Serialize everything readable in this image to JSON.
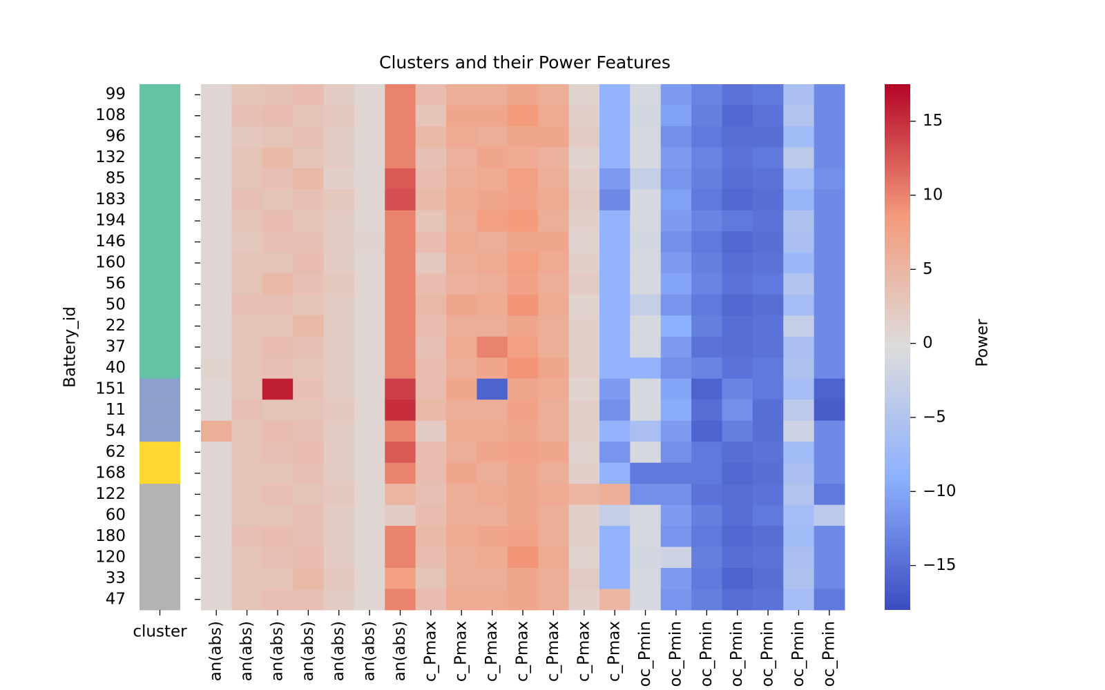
{
  "chart_data": {
    "type": "heatmap",
    "title": "Clusters and their Power Features",
    "ylabel": "Battery_id",
    "categories": [
      "99",
      "108",
      "96",
      "132",
      "85",
      "183",
      "194",
      "146",
      "160",
      "56",
      "50",
      "22",
      "37",
      "40",
      "151",
      "11",
      "54",
      "62",
      "168",
      "122",
      "60",
      "180",
      "120",
      "33",
      "47"
    ],
    "row_colors_label": "cluster",
    "row_colors": [
      "#66c2a5",
      "#66c2a5",
      "#66c2a5",
      "#66c2a5",
      "#66c2a5",
      "#66c2a5",
      "#66c2a5",
      "#66c2a5",
      "#66c2a5",
      "#66c2a5",
      "#66c2a5",
      "#66c2a5",
      "#66c2a5",
      "#66c2a5",
      "#8da0cb",
      "#8da0cb",
      "#8da0cb",
      "#ffd92f",
      "#ffd92f",
      "#b3b3b3",
      "#b3b3b3",
      "#b3b3b3",
      "#b3b3b3",
      "#b3b3b3",
      "#b3b3b3"
    ],
    "columns": [
      "an(abs)",
      "an(abs)",
      "an(abs)",
      "an(abs)",
      "an(abs)",
      "an(abs)",
      "an(abs)",
      "c_Pmax",
      "c_Pmax",
      "c_Pmax",
      "c_Pmax",
      "c_Pmax",
      "c_Pmax",
      "c_Pmax",
      "oc_Pmin",
      "oc_Pmin",
      "oc_Pmin",
      "oc_Pmin",
      "oc_Pmin",
      "oc_Pmin",
      "oc_Pmin"
    ],
    "values": [
      [
        0.5,
        3,
        3.2,
        4,
        2,
        0.5,
        10,
        4,
        6,
        6,
        7,
        6,
        1,
        -8.5,
        -1,
        -11,
        -13,
        -14.5,
        -14,
        -6,
        -12.5
      ],
      [
        0.5,
        3.5,
        4,
        3,
        2.5,
        0.5,
        10,
        3,
        7,
        7,
        8.5,
        6.5,
        1.5,
        -8.5,
        -1.5,
        -10.5,
        -13.5,
        -15.5,
        -14.5,
        -5,
        -12.5
      ],
      [
        0.5,
        2.5,
        3,
        3.5,
        2,
        0.5,
        10,
        4.5,
        6.5,
        6,
        7,
        7,
        2,
        -8.5,
        -1,
        -12,
        -14,
        -15,
        -15,
        -7,
        -12.5
      ],
      [
        0.5,
        3,
        4.5,
        3,
        2,
        0.5,
        10,
        3.5,
        5.5,
        7,
        6.5,
        5.5,
        1,
        -8.5,
        -1,
        -11,
        -13,
        -14.5,
        -14,
        -4,
        -12.5
      ],
      [
        0.5,
        3,
        3.5,
        4.5,
        1.5,
        0.5,
        12.5,
        4,
        6,
        6.5,
        8,
        6,
        1.5,
        -11,
        -3,
        -11.5,
        -13.5,
        -15,
        -14.5,
        -6.5,
        -12
      ],
      [
        0.5,
        3.5,
        3,
        3.5,
        2.5,
        0.5,
        13,
        4.5,
        6.5,
        7,
        7.5,
        6.5,
        2,
        -12.5,
        -1,
        -10.5,
        -14,
        -15.5,
        -15,
        -8,
        -12.5
      ],
      [
        0.5,
        3,
        4,
        3,
        2,
        0.5,
        10,
        3,
        6,
        8,
        8.5,
        6,
        1.5,
        -8.5,
        -1,
        -11,
        -13,
        -14,
        -14.5,
        -5.5,
        -12.5
      ],
      [
        0.5,
        2.5,
        3.5,
        3.5,
        2,
        1,
        10,
        4,
        6.5,
        6,
        7,
        7,
        1,
        -8.5,
        -1.5,
        -12,
        -14,
        -15.5,
        -15,
        -6,
        -12.5
      ],
      [
        0.5,
        3,
        3,
        4,
        2,
        0.5,
        10,
        2.5,
        6,
        6.5,
        8,
        6.5,
        1.5,
        -8.5,
        -1,
        -11,
        -13.5,
        -15,
        -14.5,
        -7.5,
        -12.5
      ],
      [
        0.5,
        3,
        4.5,
        3.5,
        2.5,
        0.5,
        10,
        4,
        5.5,
        6,
        7.5,
        6,
        2,
        -8.5,
        -1,
        -10,
        -13,
        -14.5,
        -14,
        -5,
        -12.5
      ],
      [
        0.5,
        3.5,
        3.5,
        3,
        2,
        0.5,
        10,
        4.5,
        7,
        6.5,
        9,
        6.5,
        1,
        -8.5,
        -3,
        -11.5,
        -14,
        -15.5,
        -15,
        -6.5,
        -12.5
      ],
      [
        0.5,
        3,
        3,
        4.5,
        2,
        0.5,
        10,
        4,
        6,
        6,
        7,
        6,
        1.5,
        -8.5,
        -1,
        -9,
        -13.5,
        -15,
        -14.5,
        -3,
        -12.5
      ],
      [
        0.5,
        3,
        4,
        3.5,
        2,
        0.5,
        10,
        3.5,
        6.5,
        10,
        8,
        6,
        1.5,
        -8.5,
        -1,
        -11,
        -14.5,
        -15,
        -14.5,
        -6,
        -12.5
      ],
      [
        1,
        3,
        3.5,
        3,
        2,
        0.5,
        10,
        4,
        6,
        7,
        9,
        7,
        1.5,
        -8.5,
        -8.5,
        -12,
        -13,
        -14.5,
        -14,
        -5.5,
        -12.5
      ],
      [
        0.5,
        3,
        16,
        3.5,
        2,
        0.5,
        14,
        4,
        7,
        -16,
        7,
        6.5,
        1,
        -11,
        -1,
        -10,
        -16,
        -13,
        -14,
        -6.5,
        -16
      ],
      [
        0.5,
        3.5,
        3,
        3,
        2.5,
        0.5,
        15,
        4.5,
        6,
        6,
        7.5,
        6,
        1.5,
        -12,
        -1,
        -9.5,
        -15,
        -12,
        -15,
        -4,
        -16.5
      ],
      [
        6,
        3,
        4,
        3.5,
        2,
        0.5,
        10,
        2,
        6.5,
        6.5,
        7,
        6,
        1.5,
        -8.5,
        -6,
        -11,
        -16,
        -13.5,
        -15,
        -2,
        -12.5
      ],
      [
        0.5,
        3,
        3.5,
        4,
        2,
        0.5,
        12.5,
        4,
        6,
        7,
        7.5,
        7,
        1,
        -11.5,
        -1,
        -12,
        -14,
        -15,
        -14.5,
        -7,
        -12.5
      ],
      [
        0.5,
        3,
        3,
        3.5,
        2,
        0.5,
        10,
        4,
        7,
        6,
        7,
        6,
        1.5,
        -8.5,
        -14,
        -14,
        -14,
        -15.5,
        -15,
        -6,
        -12.5
      ],
      [
        0.5,
        3,
        3.5,
        3,
        2.5,
        0.5,
        5,
        3.5,
        6,
        6.5,
        7,
        6.5,
        5,
        6,
        -12,
        -12,
        -14.5,
        -15,
        -14.5,
        -5,
        -14
      ],
      [
        0.5,
        3,
        3,
        3.5,
        2,
        0.5,
        2,
        4,
        6,
        6,
        7,
        6,
        1.5,
        -3,
        -1,
        -11,
        -13.5,
        -15,
        -14,
        -6.5,
        -4
      ],
      [
        0.5,
        3.5,
        4,
        3.5,
        2,
        0.5,
        10,
        4.5,
        6.5,
        7,
        7.5,
        6,
        1.5,
        -8.5,
        -1,
        -11.5,
        -14,
        -15.5,
        -15,
        -7,
        -12.5
      ],
      [
        0.5,
        3,
        3.5,
        4,
        2,
        0.5,
        10,
        4,
        6,
        6.5,
        9,
        6.5,
        1,
        -8.5,
        -1.5,
        -2,
        -13.5,
        -15,
        -14.5,
        -6,
        -12.5
      ],
      [
        0.5,
        3,
        3,
        4.5,
        2.5,
        0.5,
        8,
        3,
        6,
        6,
        7,
        6,
        2,
        -8.5,
        -1,
        -11,
        -14,
        -16,
        -15,
        -5.5,
        -12.5
      ],
      [
        0.5,
        3,
        3.5,
        3.5,
        2,
        0.5,
        10,
        4,
        6.5,
        6.5,
        7,
        6,
        1.5,
        5,
        -1,
        -11.5,
        -13.5,
        -15,
        -14.5,
        -6.5,
        -14
      ]
    ],
    "colormap": [
      "#3b4cc0",
      "#8db0fe",
      "#dddcdc",
      "#f49a7b",
      "#b40426"
    ],
    "colorbar": {
      "label": "Power",
      "lim": [
        -18,
        17.5
      ],
      "ticks": [
        {
          "value": -15,
          "label": "−15"
        },
        {
          "value": -10,
          "label": "−10"
        },
        {
          "value": -5,
          "label": "−5"
        },
        0,
        5,
        10,
        15
      ]
    }
  }
}
